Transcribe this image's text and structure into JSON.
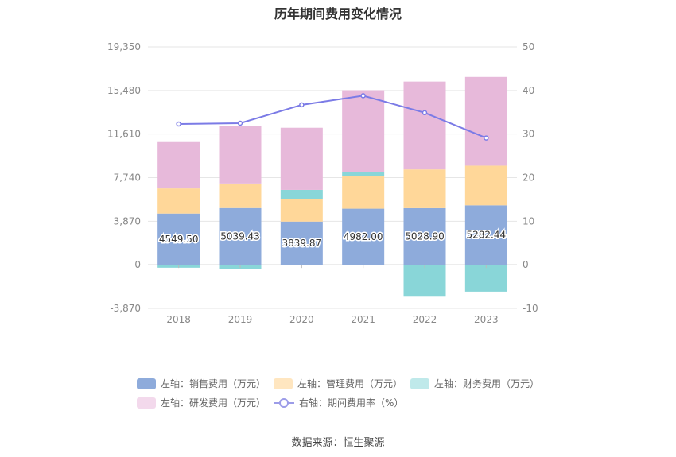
{
  "title": "历年期间费用变化情况",
  "source": "数据来源：恒生聚源",
  "chart_data": {
    "type": "bar",
    "stacked": true,
    "categories": [
      "2018",
      "2019",
      "2020",
      "2021",
      "2022",
      "2023"
    ],
    "left_axis": {
      "ticks": [
        "19,350",
        "15,480",
        "11,610",
        "7,740",
        "3,870",
        "0",
        "-3,870"
      ],
      "range": [
        -3870,
        19350
      ]
    },
    "right_axis": {
      "ticks": [
        "50",
        "40",
        "30",
        "20",
        "10",
        "0",
        "-10"
      ],
      "range": [
        -10,
        50
      ]
    },
    "series": [
      {
        "name": "左轴：销售费用（万元）",
        "color": "#8eabdb",
        "values": [
          4549.5,
          5039.43,
          3839.87,
          4982.0,
          5028.9,
          5282.44
        ],
        "labels": [
          "4549.50",
          "5039.43",
          "3839.87",
          "4982.00",
          "5028.90",
          "5282.44"
        ]
      },
      {
        "name": "左轴：管理费用（万元）",
        "color": "#ffd799",
        "values": [
          2230,
          2180,
          2030,
          2880,
          3440,
          3520
        ]
      },
      {
        "name": "左轴：财务费用（万元）",
        "color": "#89d6d8",
        "values": [
          -260,
          -400,
          780,
          360,
          -2830,
          -2380
        ]
      },
      {
        "name": "左轴：研发费用（万元）",
        "color": "#e7b9da",
        "values": [
          4120,
          5120,
          5520,
          7280,
          7800,
          7880
        ]
      }
    ],
    "line": {
      "name": "右轴：期间费用率（%）",
      "color": "#7b7be6",
      "values": [
        32.3,
        32.5,
        36.7,
        38.8,
        34.9,
        29.1
      ]
    },
    "legend_placement": "bottom"
  }
}
